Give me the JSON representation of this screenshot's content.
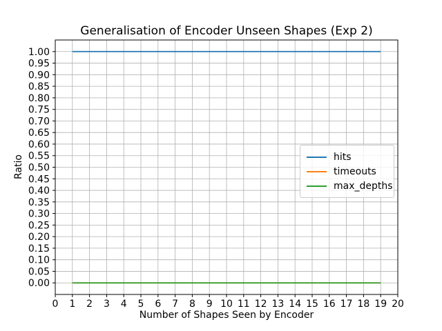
{
  "title": "Generalisation of Encoder Unseen Shapes (Exp 2)",
  "xlabel": "Number of Shapes Seen by Encoder",
  "ylabel": "Ratio",
  "colors": {
    "hits": "#1f77b4",
    "timeouts": "#ff7f0e",
    "max_depths": "#2ca02c",
    "grid": "#b0b0b0",
    "spine": "#000000",
    "background": "#ffffff",
    "legend_border": "#cccccc"
  },
  "legend": {
    "position": "center right",
    "items": [
      {
        "label": "hits",
        "color": "#1f77b4"
      },
      {
        "label": "timeouts",
        "color": "#ff7f0e"
      },
      {
        "label": "max_depths",
        "color": "#2ca02c"
      }
    ]
  },
  "chart_data": {
    "type": "line",
    "title": "Generalisation of Encoder Unseen Shapes (Exp 2)",
    "xlabel": "Number of Shapes Seen by Encoder",
    "ylabel": "Ratio",
    "grid": true,
    "legend_position": "center right",
    "xlim": [
      0,
      20
    ],
    "ylim": [
      -0.05,
      1.05
    ],
    "xticks": [
      0,
      1,
      2,
      3,
      4,
      5,
      6,
      7,
      8,
      9,
      10,
      11,
      12,
      13,
      14,
      15,
      16,
      17,
      18,
      19,
      20
    ],
    "ytick_labels": [
      "0.00",
      "0.05",
      "0.10",
      "0.15",
      "0.20",
      "0.25",
      "0.30",
      "0.35",
      "0.40",
      "0.45",
      "0.50",
      "0.55",
      "0.60",
      "0.65",
      "0.70",
      "0.75",
      "0.80",
      "0.85",
      "0.90",
      "0.95",
      "1.00"
    ],
    "ytick_values": [
      0.0,
      0.05,
      0.1,
      0.15,
      0.2,
      0.25,
      0.3,
      0.35,
      0.4,
      0.45,
      0.5,
      0.55,
      0.6,
      0.65,
      0.7,
      0.75,
      0.8,
      0.85,
      0.9,
      0.95,
      1.0
    ],
    "x": [
      1,
      2,
      3,
      4,
      5,
      6,
      7,
      8,
      9,
      10,
      11,
      12,
      13,
      14,
      15,
      16,
      17,
      18,
      19
    ],
    "series": [
      {
        "name": "hits",
        "color": "#1f77b4",
        "values": [
          1.0,
          1.0,
          1.0,
          1.0,
          1.0,
          1.0,
          1.0,
          1.0,
          1.0,
          1.0,
          1.0,
          1.0,
          1.0,
          1.0,
          1.0,
          1.0,
          1.0,
          1.0,
          1.0
        ]
      },
      {
        "name": "timeouts",
        "color": "#ff7f0e",
        "values": [
          0.0,
          0.0,
          0.0,
          0.0,
          0.0,
          0.0,
          0.0,
          0.0,
          0.0,
          0.0,
          0.0,
          0.0,
          0.0,
          0.0,
          0.0,
          0.0,
          0.0,
          0.0,
          0.0
        ]
      },
      {
        "name": "max_depths",
        "color": "#2ca02c",
        "values": [
          0.0,
          0.0,
          0.0,
          0.0,
          0.0,
          0.0,
          0.0,
          0.0,
          0.0,
          0.0,
          0.0,
          0.0,
          0.0,
          0.0,
          0.0,
          0.0,
          0.0,
          0.0,
          0.0
        ]
      }
    ]
  }
}
